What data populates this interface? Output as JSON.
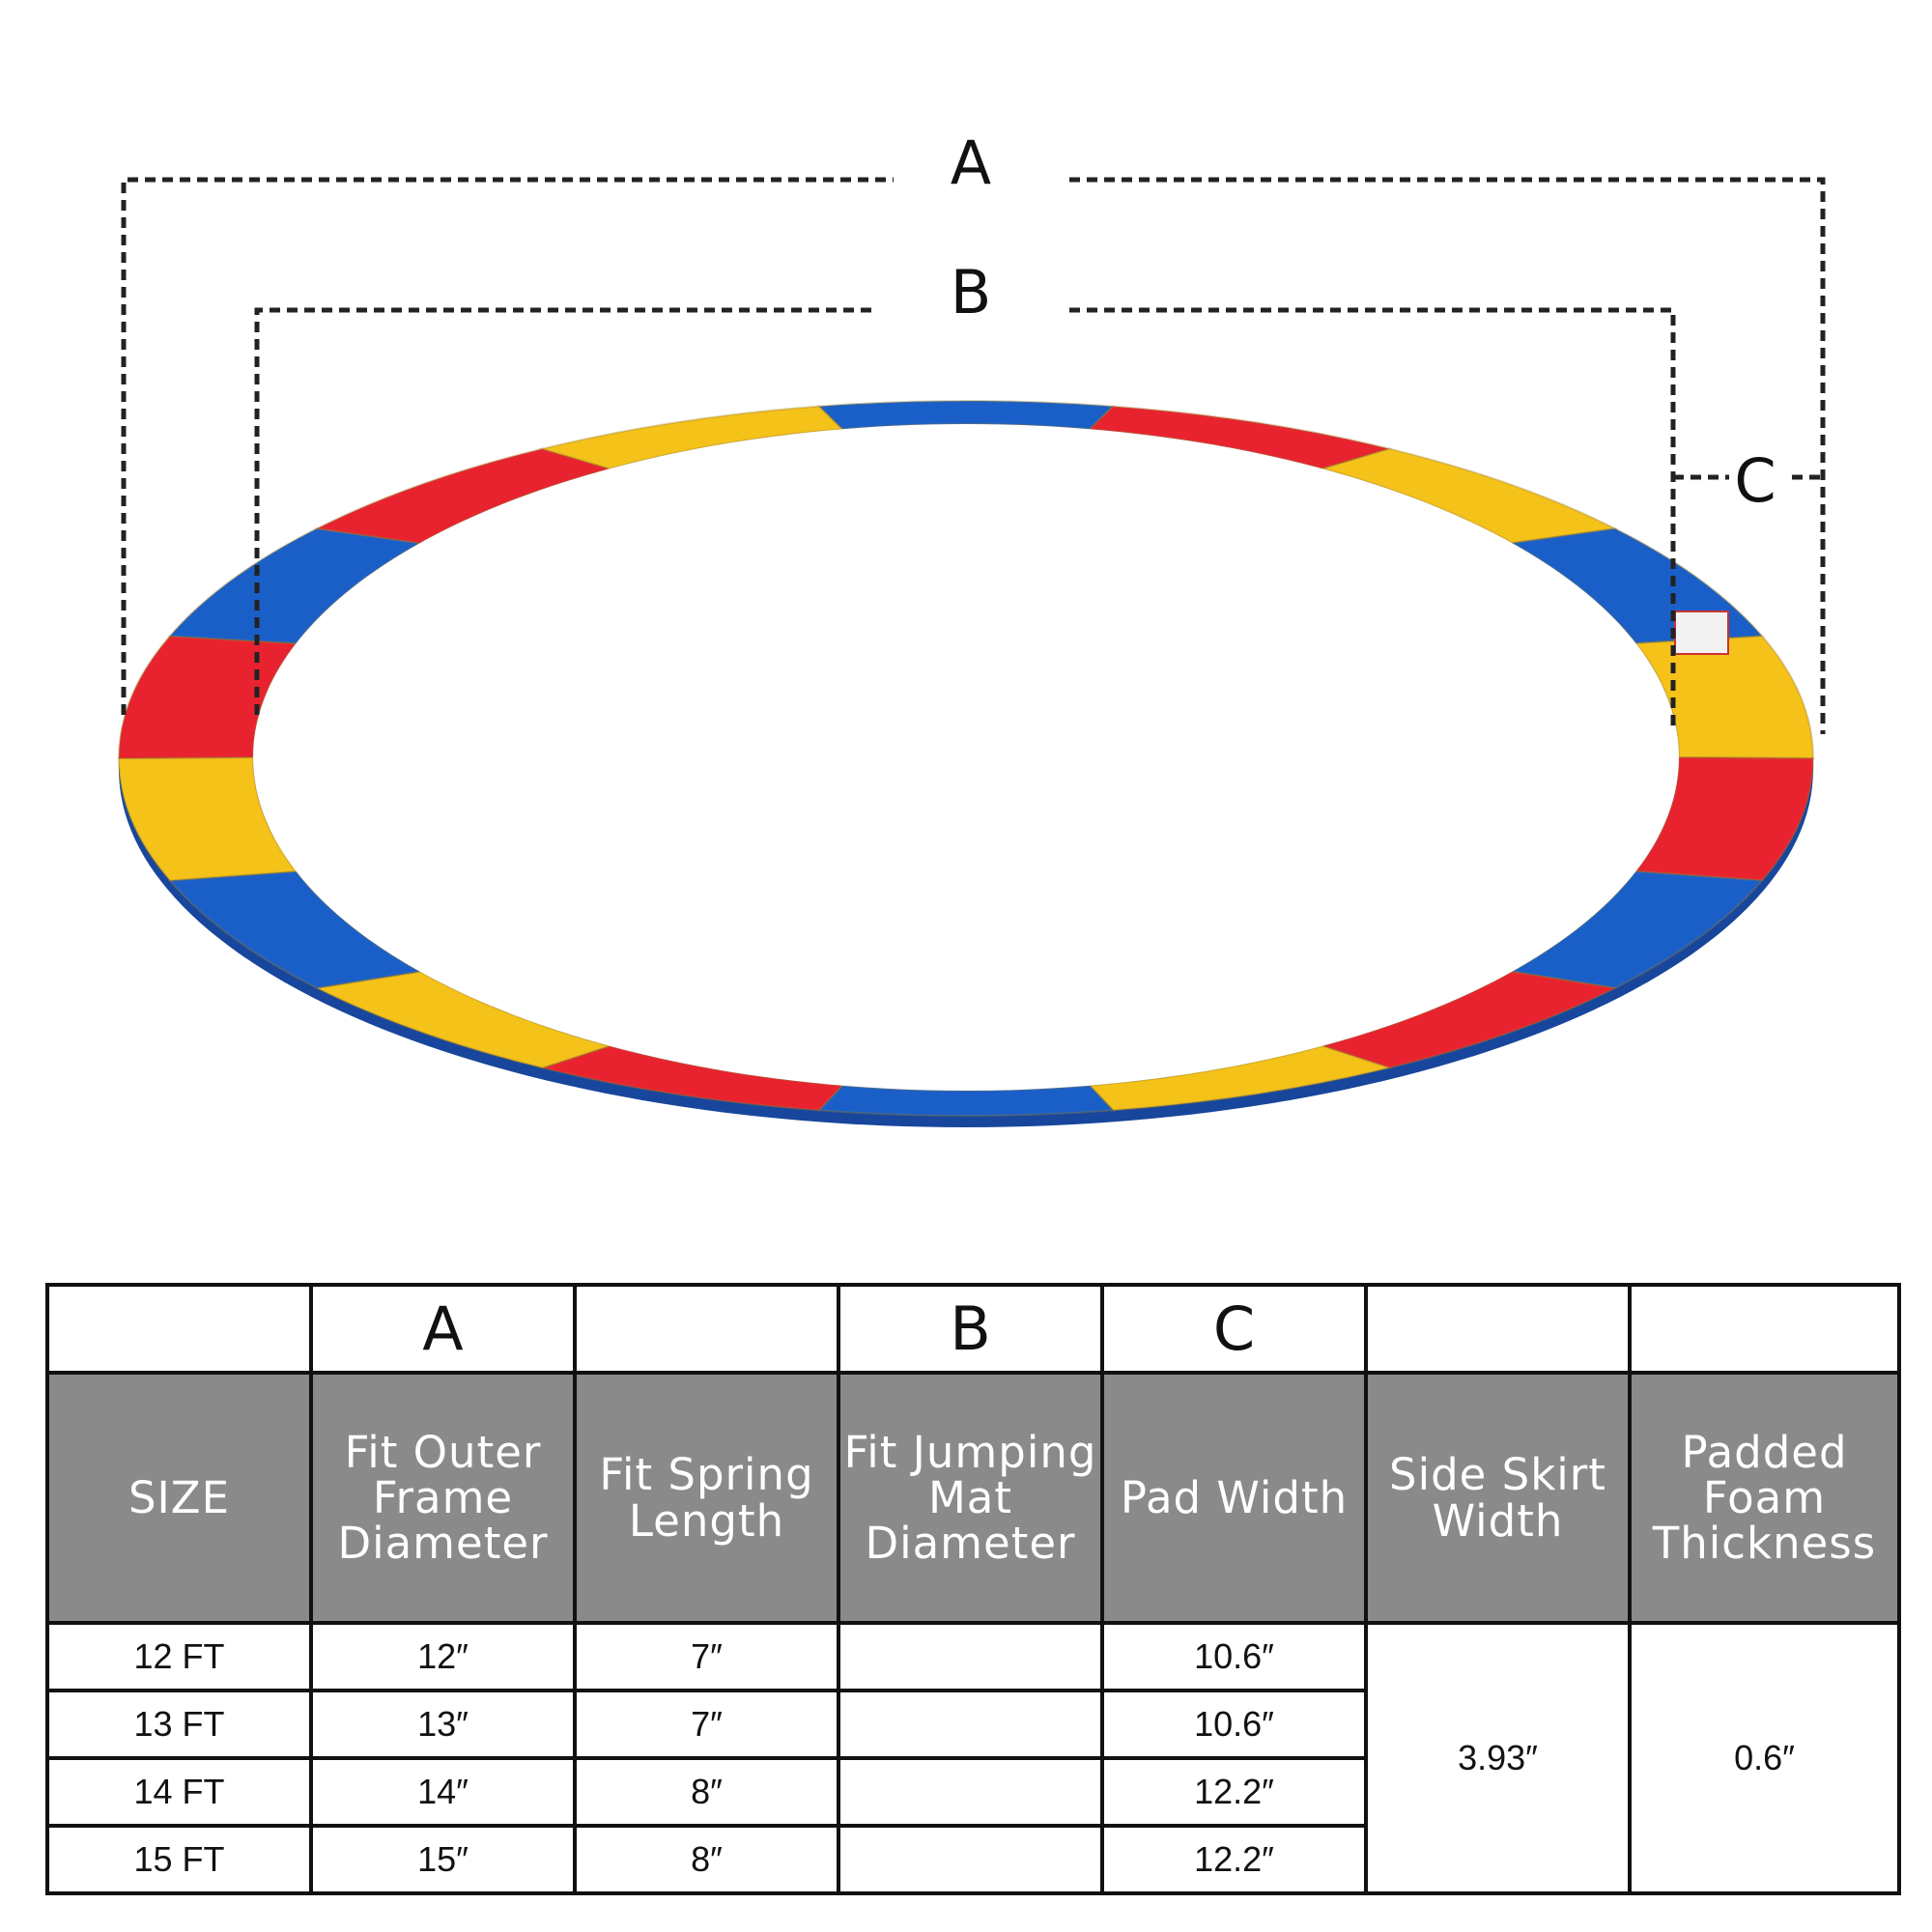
{
  "diagram": {
    "labels": {
      "a": "A",
      "b": "B",
      "c": "C"
    },
    "segment_colors": [
      "#1a5fc8",
      "#e8232f",
      "#f5c21a",
      "#1a5fc8",
      "#f5c21a",
      "#e8232f",
      "#1a5fc8",
      "#e8232f",
      "#f5c21a",
      "#1a5fc8",
      "#e8232f",
      "#f5c21a",
      "#1a5fc8",
      "#f5c21a",
      "#e8232f",
      "#1a5fc8",
      "#e8232f",
      "#f5c21a"
    ]
  },
  "table": {
    "letters": [
      "",
      "A",
      "",
      "B",
      "C",
      "",
      ""
    ],
    "headers": [
      "SIZE",
      "Fit Outer Frame Diameter",
      "Fit Spring Length",
      "Fit Jumping Mat Diameter",
      "Pad Width",
      "Side Skirt Width",
      "Padded Foam Thickness"
    ],
    "rows": [
      {
        "size": "12 FT",
        "outer": "12″",
        "spring": "7″",
        "mat": "",
        "pad": "10.6″"
      },
      {
        "size": "13 FT",
        "outer": "13″",
        "spring": "7″",
        "mat": "",
        "pad": "10.6″"
      },
      {
        "size": "14 FT",
        "outer": "14″",
        "spring": "8″",
        "mat": "",
        "pad": "12.2″"
      },
      {
        "size": "15 FT",
        "outer": "15″",
        "spring": "8″",
        "mat": "",
        "pad": "12.2″"
      }
    ],
    "side_skirt": "3.93″",
    "foam_thickness": "0.6″"
  }
}
